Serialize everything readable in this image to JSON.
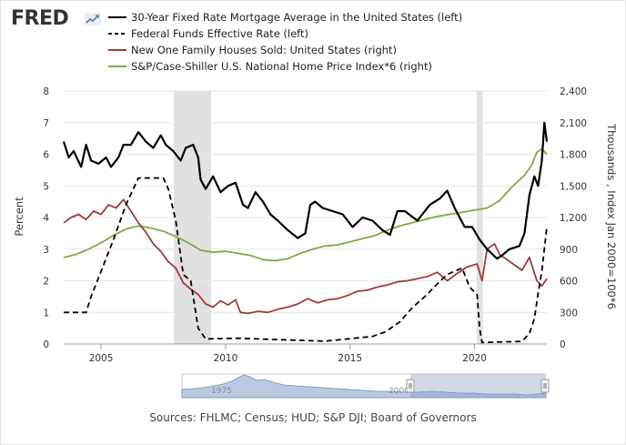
{
  "header": {
    "logo_text": "FRED",
    "logo_icon": "trend-line-icon",
    "brand_color": "#333333"
  },
  "chart_data": {
    "type": "line",
    "left_axis": {
      "label": "Percent",
      "ylim": [
        0,
        8
      ],
      "ticks": [
        "0",
        "1",
        "2",
        "3",
        "4",
        "5",
        "6",
        "7",
        "8"
      ]
    },
    "right_axis": {
      "label": "Thousands , Index Jan 2000=100*6",
      "ylim": [
        0,
        2400
      ],
      "ticks": [
        "0",
        "300",
        "600",
        "900",
        "1,200",
        "1,500",
        "1,800",
        "2,100",
        "2,400"
      ]
    },
    "x_axis": {
      "xlim": [
        2003.5,
        2022.9
      ],
      "tick_values": [
        2005,
        2010,
        2015,
        2020
      ],
      "ticks": [
        "2005",
        "2010",
        "2015",
        "2020"
      ]
    },
    "grid": true,
    "recessions": [
      [
        2007.92,
        2009.42
      ],
      [
        2020.08,
        2020.33
      ]
    ],
    "series": [
      {
        "name": "30-Year Fixed Rate Mortgage Average in the United States (left)",
        "axis": "left",
        "color": "#000000",
        "dash": "solid",
        "x": [
          2003.5,
          2003.7,
          2003.9,
          2004.2,
          2004.4,
          2004.6,
          2004.9,
          2005.2,
          2005.4,
          2005.7,
          2005.9,
          2006.2,
          2006.5,
          2006.8,
          2007.1,
          2007.4,
          2007.6,
          2007.9,
          2008.2,
          2008.4,
          2008.7,
          2008.9,
          2009.0,
          2009.2,
          2009.5,
          2009.8,
          2010.1,
          2010.4,
          2010.7,
          2010.9,
          2011.2,
          2011.5,
          2011.8,
          2012.1,
          2012.5,
          2012.9,
          2013.2,
          2013.4,
          2013.6,
          2013.9,
          2014.3,
          2014.7,
          2015.1,
          2015.5,
          2015.9,
          2016.3,
          2016.6,
          2016.9,
          2017.2,
          2017.7,
          2018.2,
          2018.6,
          2018.9,
          2019.2,
          2019.6,
          2019.9,
          2020.2,
          2020.5,
          2020.9,
          2021.1,
          2021.4,
          2021.8,
          2022.0,
          2022.2,
          2022.4,
          2022.55,
          2022.7,
          2022.8,
          2022.9
        ],
        "y": [
          6.4,
          5.9,
          6.1,
          5.6,
          6.3,
          5.8,
          5.7,
          5.9,
          5.6,
          5.9,
          6.3,
          6.3,
          6.7,
          6.4,
          6.2,
          6.6,
          6.3,
          6.1,
          5.8,
          6.2,
          6.3,
          5.9,
          5.2,
          4.9,
          5.3,
          4.8,
          5.0,
          5.1,
          4.4,
          4.3,
          4.8,
          4.5,
          4.1,
          3.9,
          3.6,
          3.35,
          3.5,
          4.4,
          4.5,
          4.3,
          4.2,
          4.1,
          3.7,
          4.0,
          3.9,
          3.6,
          3.45,
          4.2,
          4.2,
          3.9,
          4.4,
          4.6,
          4.85,
          4.3,
          3.7,
          3.7,
          3.3,
          3.0,
          2.7,
          2.8,
          3.0,
          3.1,
          3.5,
          4.7,
          5.3,
          5.0,
          5.8,
          7.0,
          6.4
        ]
      },
      {
        "name": "Federal Funds Effective Rate (left)",
        "axis": "left",
        "color": "#000000",
        "dash": "dashed",
        "x": [
          2003.5,
          2004.4,
          2004.6,
          2005.0,
          2005.5,
          2006.0,
          2006.5,
          2006.7,
          2007.5,
          2007.7,
          2008.0,
          2008.3,
          2008.6,
          2008.9,
          2009.2,
          2010.5,
          2012.0,
          2014.0,
          2015.9,
          2016.4,
          2017.0,
          2017.5,
          2018.0,
          2018.5,
          2018.9,
          2019.5,
          2019.8,
          2020.1,
          2020.2,
          2020.3,
          2021.9,
          2022.2,
          2022.4,
          2022.55,
          2022.7,
          2022.9
        ],
        "y": [
          1.0,
          1.0,
          1.5,
          2.3,
          3.3,
          4.4,
          5.25,
          5.25,
          5.25,
          4.9,
          3.9,
          2.2,
          2.0,
          0.5,
          0.16,
          0.18,
          0.14,
          0.09,
          0.24,
          0.38,
          0.7,
          1.15,
          1.5,
          1.9,
          2.2,
          2.4,
          1.8,
          1.55,
          0.5,
          0.05,
          0.08,
          0.33,
          0.8,
          1.6,
          2.3,
          3.7
        ]
      },
      {
        "name": "New One Family Houses Sold: United States (right)",
        "axis": "right",
        "color": "#a33a3a",
        "dash": "solid",
        "x": [
          2003.5,
          2003.8,
          2004.1,
          2004.4,
          2004.7,
          2005.0,
          2005.3,
          2005.6,
          2005.9,
          2006.2,
          2006.5,
          2006.8,
          2007.1,
          2007.4,
          2007.7,
          2008.0,
          2008.3,
          2008.6,
          2008.9,
          2009.2,
          2009.5,
          2009.8,
          2010.1,
          2010.4,
          2010.6,
          2010.9,
          2011.3,
          2011.7,
          2012.1,
          2012.5,
          2012.9,
          2013.3,
          2013.7,
          2014.1,
          2014.5,
          2014.9,
          2015.3,
          2015.7,
          2016.1,
          2016.5,
          2016.9,
          2017.3,
          2017.7,
          2018.1,
          2018.5,
          2018.9,
          2019.3,
          2019.7,
          2020.1,
          2020.3,
          2020.5,
          2020.8,
          2021.0,
          2021.3,
          2021.6,
          2021.9,
          2022.2,
          2022.5,
          2022.7,
          2022.9
        ],
        "y": [
          1150,
          1200,
          1230,
          1180,
          1260,
          1230,
          1320,
          1290,
          1370,
          1260,
          1150,
          1060,
          950,
          880,
          780,
          720,
          580,
          520,
          470,
          380,
          350,
          410,
          370,
          420,
          300,
          290,
          310,
          300,
          330,
          350,
          380,
          430,
          390,
          420,
          430,
          460,
          500,
          510,
          540,
          560,
          590,
          600,
          620,
          640,
          680,
          600,
          670,
          730,
          760,
          600,
          900,
          950,
          850,
          800,
          750,
          700,
          820,
          600,
          550,
          620
        ]
      },
      {
        "name": "S&P/Case-Shiller U.S. National Home Price Index*6 (right)",
        "axis": "right",
        "color": "#7cab44",
        "dash": "solid",
        "x": [
          2003.5,
          2004.0,
          2004.5,
          2005.0,
          2005.5,
          2006.0,
          2006.5,
          2007.0,
          2007.5,
          2008.0,
          2008.5,
          2009.0,
          2009.5,
          2010.0,
          2010.5,
          2011.0,
          2011.5,
          2012.0,
          2012.5,
          2013.0,
          2013.5,
          2014.0,
          2014.5,
          2015.0,
          2015.5,
          2016.0,
          2016.5,
          2017.0,
          2017.5,
          2018.0,
          2018.5,
          2019.0,
          2019.5,
          2020.0,
          2020.5,
          2021.0,
          2021.5,
          2022.0,
          2022.3,
          2022.5,
          2022.7,
          2022.9
        ],
        "y": [
          820,
          850,
          900,
          960,
          1030,
          1090,
          1120,
          1100,
          1070,
          1020,
          960,
          890,
          870,
          880,
          860,
          840,
          800,
          790,
          810,
          860,
          900,
          930,
          940,
          970,
          1000,
          1030,
          1080,
          1120,
          1150,
          1180,
          1210,
          1230,
          1250,
          1270,
          1290,
          1360,
          1490,
          1600,
          1700,
          1820,
          1850,
          1800
        ]
      }
    ]
  },
  "range_selector": {
    "start_label": "1975",
    "end_label": "2000"
  },
  "footer": {
    "sources": "Sources: FHLMC; Census; HUD; S&P DJI; Board of Governors"
  }
}
